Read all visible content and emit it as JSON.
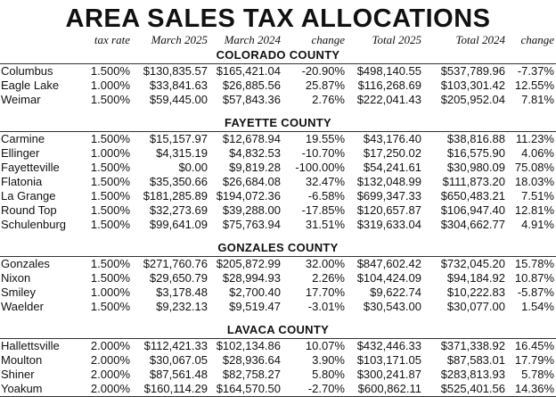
{
  "title": "AREA SALES TAX ALLOCATIONS",
  "headers": [
    "",
    "tax rate",
    "March 2025",
    "March 2024",
    "change",
    "Total 2025",
    "Total 2024",
    "change"
  ],
  "counties": [
    {
      "name": "COLORADO COUNTY",
      "rows": [
        [
          "Columbus",
          "1.500%",
          "$130,835.57",
          "$165,421.04",
          "-20.90%",
          "$498,140.55",
          "$537,789.96",
          "-7.37%"
        ],
        [
          "Eagle Lake",
          "1.000%",
          "$33,841.63",
          "$26,885.56",
          "25.87%",
          "$116,268.69",
          "$103,301.42",
          "12.55%"
        ],
        [
          "Weimar",
          "1.500%",
          "$59,445.00",
          "$57,843.36",
          "2.76%",
          "$222,041.43",
          "$205,952.04",
          "7.81%"
        ]
      ]
    },
    {
      "name": "FAYETTE COUNTY",
      "rows": [
        [
          "Carmine",
          "1.500%",
          "$15,157.97",
          "$12,678.94",
          "19.55%",
          "$43,176.40",
          "$38,816.88",
          "11.23%"
        ],
        [
          "Ellinger",
          "1.000%",
          "$4,315.19",
          "$4,832.53",
          "-10.70%",
          "$17,250.02",
          "$16,575.90",
          "4.06%"
        ],
        [
          "Fayetteville",
          "1.500%",
          "$0.00",
          "$9,819.28",
          "-100.00%",
          "$54,241.61",
          "$30,980.09",
          "75.08%"
        ],
        [
          "Flatonia",
          "1.500%",
          "$35,350.66",
          "$26,684.08",
          "32.47%",
          "$132,048.99",
          "$111,873.20",
          "18.03%"
        ],
        [
          "La Grange",
          "1.500%",
          "$181,285.89",
          "$194,072.36",
          "-6.58%",
          "$699,347.33",
          "$650,483.21",
          "7.51%"
        ],
        [
          "Round Top",
          "1.500%",
          "$32,273.69",
          "$39,288.00",
          "-17.85%",
          "$120,657.87",
          "$106,947.40",
          "12.81%"
        ],
        [
          "Schulenburg",
          "1.500%",
          "$99,641.09",
          "$75,763.94",
          "31.51%",
          "$319,633.04",
          "$304,662.77",
          "4.91%"
        ]
      ]
    },
    {
      "name": "GONZALES COUNTY",
      "rows": [
        [
          "Gonzales",
          "1.500%",
          "$271,760.76",
          "$205,872.99",
          "32.00%",
          "$847,602.42",
          "$732,045.20",
          "15.78%"
        ],
        [
          "Nixon",
          "1.500%",
          "$29,650.79",
          "$28,994.93",
          "2.26%",
          "$104,424.09",
          "$94,184.92",
          "10.87%"
        ],
        [
          "Smiley",
          "1.000%",
          "$3,178.48",
          "$2,700.40",
          "17.70%",
          "$9,622.74",
          "$10,222.83",
          "-5.87%"
        ],
        [
          "Waelder",
          "1.500%",
          "$9,232.13",
          "$9,519.47",
          "-3.01%",
          "$30,543.00",
          "$30,077.00",
          "1.54%"
        ]
      ]
    },
    {
      "name": "LAVACA COUNTY",
      "rows": [
        [
          "Hallettsville",
          "2.000%",
          "$112,421.33",
          "$102,134.86",
          "10.07%",
          "$432,446.33",
          "$371,338.92",
          "16.45%"
        ],
        [
          "Moulton",
          "2.000%",
          "$30,067.05",
          "$28,936.64",
          "3.90%",
          "$103,171.05",
          "$87,583.01",
          "17.79%"
        ],
        [
          "Shiner",
          "2.000%",
          "$87,561.48",
          "$82,758.27",
          "5.80%",
          "$300,241.87",
          "$283,813.93",
          "5.78%"
        ],
        [
          "Yoakum",
          "2.000%",
          "$160,114.29",
          "$164,570.50",
          "-2.70%",
          "$600,862.11",
          "$525,401.56",
          "14.36%"
        ]
      ]
    }
  ]
}
